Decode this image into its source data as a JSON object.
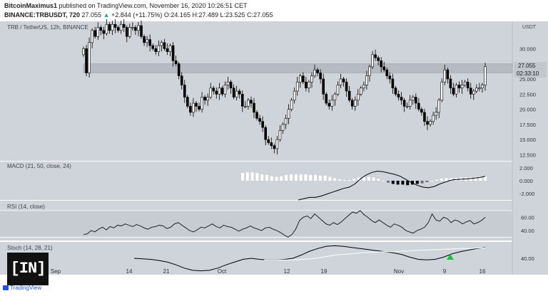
{
  "header": {
    "author": "BitcoinMaximus1",
    "published_text": "published on TradingView.com, November 16, 2020 10:26:51 CET",
    "symbol_line_prefix": "BINANCE:TRBUSDT, 720",
    "last": "27.055",
    "change_arrow": "▲",
    "change": "+2.844 (+11.75%)",
    "ohlc": "O:24.165 H:27.489 L:23.525 C:27.055"
  },
  "panes": {
    "main_label": "TRB / TetherUS, 12h, BINANCE",
    "currency": "USDT",
    "price_tag": "27.055",
    "countdown": "02:33:10",
    "macd_label": "MACD (21, 50, close, 24)",
    "rsi_label": "RSI (14, close)",
    "stoch_label": "Stoch (14, 28, 21)"
  },
  "logo": {
    "text": "[IN]",
    "footer": "TradingView"
  },
  "colors": {
    "pane_bg": "#cfd3da",
    "candle_up": "#ffffff",
    "candle_down": "#000000",
    "resistance_band": "#b6bac2",
    "marker": "#19c33a"
  },
  "chart_data": [
    {
      "type": "candlestick",
      "title": "TRB / TetherUS, 12h, BINANCE",
      "y_tick_labels": [
        "30.000",
        "27.500",
        "25.000",
        "22.500",
        "20.000",
        "17.500",
        "15.000",
        "12.500"
      ],
      "ylim": [
        11.5,
        34.5
      ],
      "x_tick_labels": [
        "Sep",
        "14",
        "21",
        "Oct",
        "12",
        "19",
        "Nov",
        "9",
        "16"
      ],
      "resistance_zone": [
        26.0,
        27.5
      ],
      "candles_close": [
        30,
        26,
        31,
        33,
        32,
        33.5,
        33,
        32.5,
        34,
        33,
        34,
        33.5,
        33,
        34,
        33.5,
        32,
        33.5,
        33.5,
        33,
        33.8,
        32,
        31,
        31.5,
        30.5,
        30,
        29.5,
        30.5,
        31,
        30,
        29.5,
        30.5,
        28,
        27.5,
        25.5,
        24,
        22,
        20.5,
        19.5,
        21,
        20.5,
        20,
        22,
        21.5,
        22,
        23.5,
        23,
        22.5,
        23.5,
        22.5,
        24,
        24.5,
        23.5,
        22,
        23,
        22.5,
        20.5,
        20.5,
        21.5,
        21,
        19.5,
        18.5,
        18,
        17,
        15,
        14.5,
        14,
        13.5,
        15,
        16.5,
        17.5,
        18.5,
        20,
        21.5,
        23,
        24.5,
        25.5,
        24.5,
        23.5,
        24.5,
        25.5,
        26.5,
        26,
        25,
        22.5,
        21,
        20.5,
        21.5,
        22.5,
        24,
        25,
        24.5,
        23,
        21.5,
        20.5,
        21.5,
        22.5,
        23.5,
        24,
        25.5,
        27,
        29,
        28.5,
        28,
        27,
        26.5,
        25.5,
        25,
        23.5,
        22.5,
        22,
        21.5,
        20.5,
        20.5,
        21.5,
        22,
        21,
        20,
        19.5,
        18,
        17.5,
        18,
        19,
        19.5,
        21.5,
        24.5,
        26.5,
        25,
        23.5,
        22.5,
        24,
        23.5,
        24,
        24.5,
        23.5,
        22.5,
        23,
        23.5,
        23.5,
        24,
        27.055
      ]
    },
    {
      "type": "bar",
      "title": "MACD (21, 50, close, 24)",
      "y_tick_labels": [
        "2.000",
        "0.000",
        "-2.000"
      ],
      "ylim": [
        -3.0,
        3.0
      ],
      "histogram": [
        1.2,
        1.3,
        1.3,
        1.2,
        1.0,
        0.9,
        0.7,
        0.6,
        0.7,
        0.9,
        1.0,
        1.0,
        1.0,
        1.0,
        0.9,
        0.9,
        0.8,
        0.8,
        0.6,
        0.4,
        0.2,
        0.1,
        0.1,
        0.3,
        0.5,
        0.6,
        0.6,
        0.5,
        0.3,
        0.0,
        -0.3,
        -0.5,
        -0.6,
        -0.6,
        -0.7,
        -0.6,
        -0.5,
        -0.4,
        -0.2,
        0.0,
        0.15,
        0.3,
        0.4,
        0.45,
        0.45,
        0.5,
        0.5,
        0.55,
        0.6,
        0.65,
        0.7
      ],
      "macd_line": [
        -3.0,
        -2.8,
        -2.6,
        -2.6,
        -2.4,
        -2.1,
        -1.8,
        -1.5,
        -1.2,
        -1.0,
        -0.5,
        0.3,
        0.9,
        1.3,
        1.5,
        1.4,
        1.2,
        1.0,
        0.7,
        0.2,
        -0.3,
        -0.7,
        -1.0,
        -1.1,
        -0.9,
        -0.5,
        -0.2,
        0.1,
        0.2,
        0.25,
        0.3,
        0.4,
        0.5,
        0.7
      ]
    },
    {
      "type": "line",
      "title": "RSI (14, close)",
      "y_tick_labels": [
        "60.00",
        "40.00"
      ],
      "ylim": [
        25,
        85
      ],
      "bands": [
        30,
        70
      ],
      "values": [
        34,
        35,
        40,
        38,
        42,
        45,
        41,
        46,
        44,
        48,
        47,
        50,
        48,
        46,
        49,
        47,
        44,
        42,
        45,
        46,
        48,
        47,
        43,
        45,
        50,
        52,
        48,
        44,
        40,
        38,
        41,
        45,
        44,
        47,
        50,
        46,
        44,
        48,
        46,
        45,
        42,
        39,
        42,
        44,
        47,
        44,
        42,
        40,
        44,
        45,
        42,
        40,
        37,
        33,
        30,
        34,
        42,
        55,
        60,
        62,
        58,
        65,
        60,
        55,
        50,
        48,
        52,
        49,
        53,
        58,
        63,
        68,
        66,
        70,
        64,
        60,
        55,
        52,
        56,
        52,
        48,
        45,
        50,
        48,
        45,
        40,
        38,
        36,
        40,
        42,
        45,
        52,
        65,
        56,
        54,
        60,
        58,
        52,
        56,
        54,
        50,
        53,
        55,
        50,
        52,
        55,
        60
      ]
    },
    {
      "type": "line",
      "title": "Stoch (14, 28, 21)",
      "y_tick_labels": [
        "40.00"
      ],
      "ylim": [
        10,
        70
      ],
      "series": [
        {
          "values": [
            40,
            39,
            38,
            36,
            33,
            28,
            22,
            18,
            17,
            18,
            22,
            28,
            33,
            38,
            40,
            38,
            37,
            37,
            38,
            40,
            46,
            53,
            58,
            62,
            63,
            62,
            60,
            58,
            56,
            54,
            52,
            50,
            47,
            42,
            38,
            37,
            38,
            42,
            48,
            52,
            55,
            58,
            60
          ]
        },
        {
          "values": [
            37,
            37,
            37,
            37,
            37,
            37,
            38,
            39,
            40,
            42,
            44,
            46,
            47,
            48,
            49,
            50,
            51,
            51,
            52,
            52,
            52,
            53,
            53,
            54,
            55,
            55,
            56,
            56,
            57,
            57,
            58,
            58,
            58,
            59,
            59
          ]
        }
      ]
    }
  ]
}
